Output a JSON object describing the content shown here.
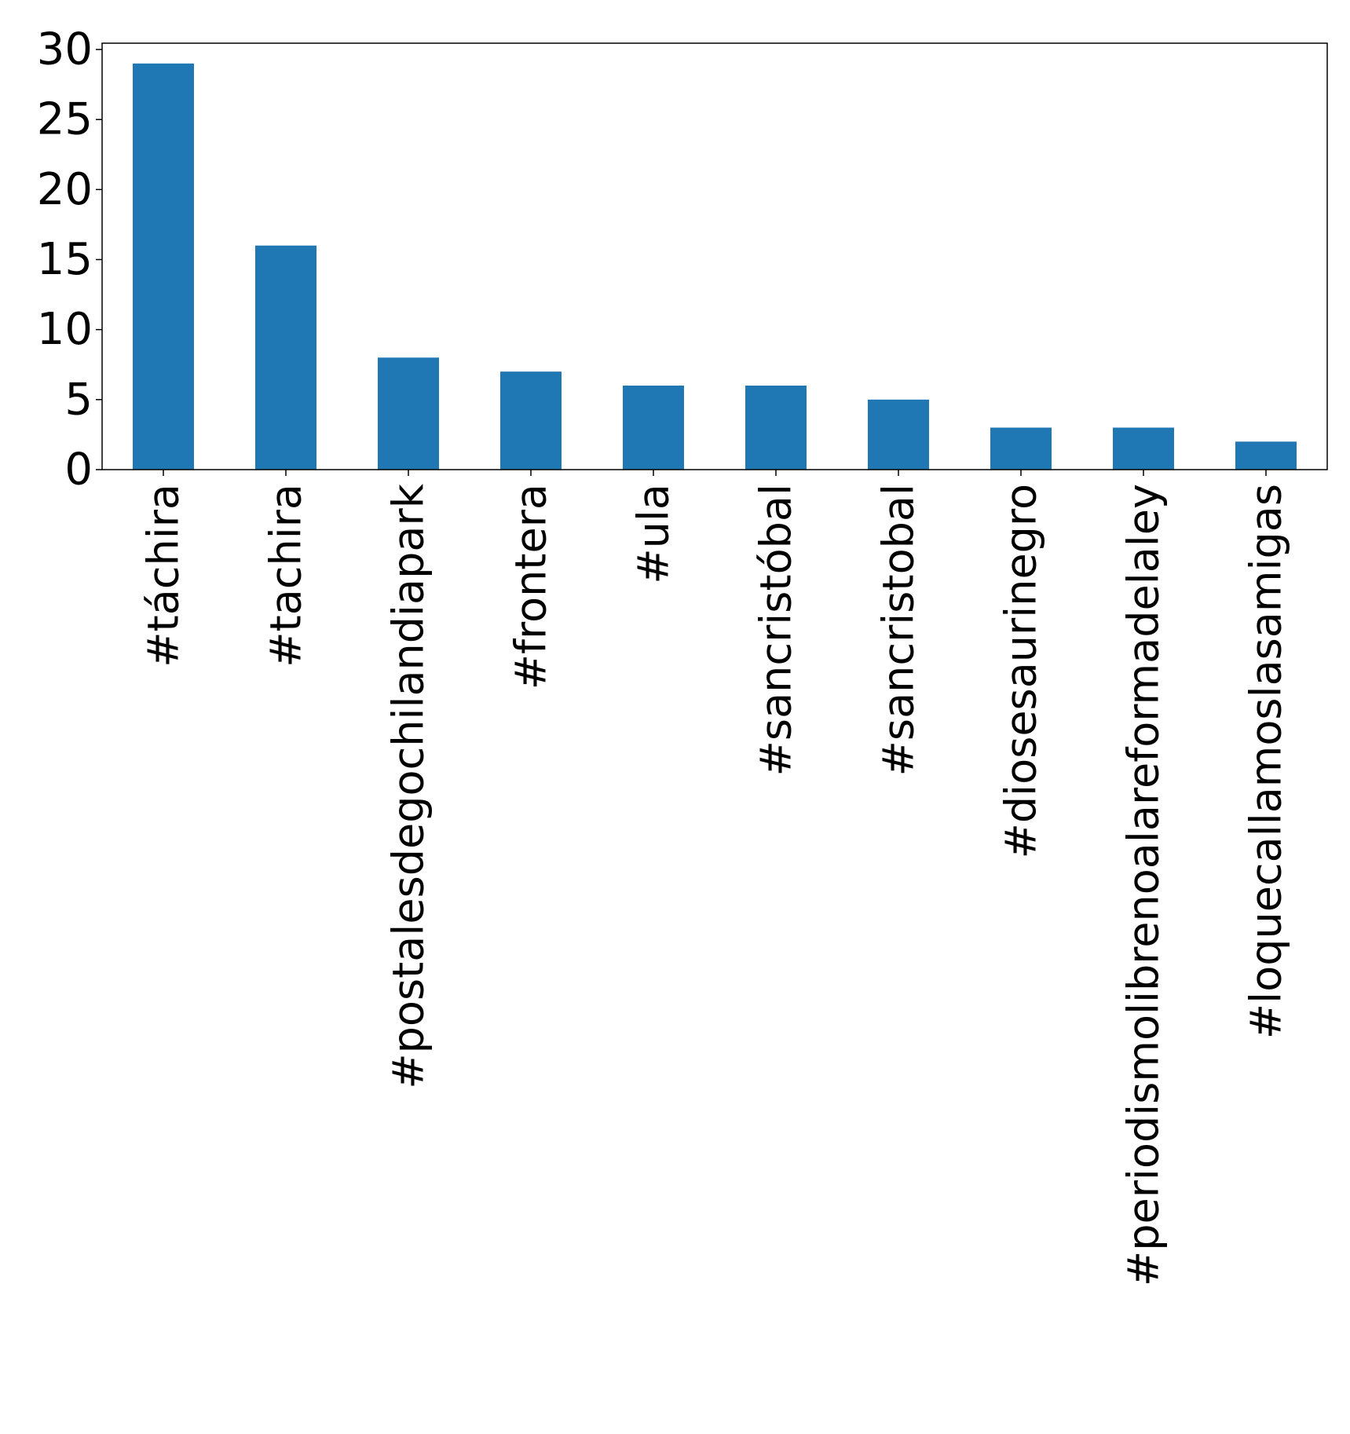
{
  "chart_data": {
    "type": "bar",
    "title": "",
    "xlabel": "",
    "ylabel": "",
    "categories": [
      "#táchira",
      "#tachira",
      "#postalesdegochilandiapark",
      "#frontera",
      "#ula",
      "#sancristóbal",
      "#sancristobal",
      "#diosesaurinegro",
      "#periodismolibrenoalareformadelaley",
      "#loquecallamoslasamigas"
    ],
    "values": [
      29,
      16,
      8,
      7,
      6,
      6,
      5,
      3,
      3,
      2
    ],
    "ylim": [
      0,
      30.45
    ],
    "yticks": [
      0,
      5,
      10,
      15,
      20,
      25,
      30
    ],
    "grid": false,
    "legend": "none",
    "bar_color": "#1f77b4"
  }
}
